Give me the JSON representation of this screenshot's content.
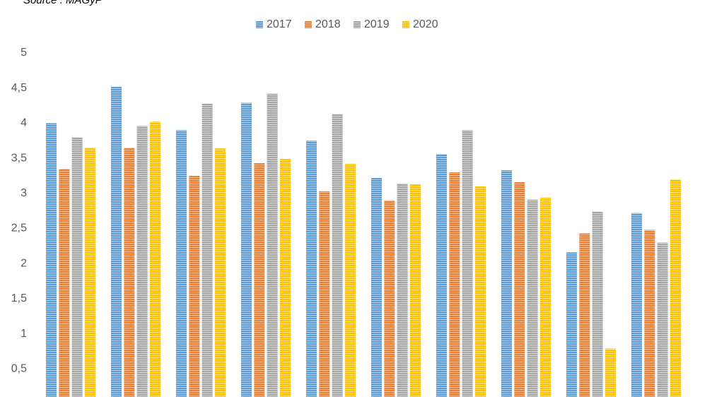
{
  "chart_data": {
    "type": "bar",
    "source": "Source : MAGyP",
    "categories": [
      null,
      null,
      null,
      null,
      null,
      null,
      null,
      null,
      null,
      null
    ],
    "series": [
      {
        "name": "2017",
        "color": "#5b9bd5",
        "values": [
          4.0,
          4.52,
          3.9,
          4.29,
          3.75,
          3.22,
          3.56,
          3.33,
          2.16,
          2.72
        ]
      },
      {
        "name": "2018",
        "color": "#ed7d31",
        "values": [
          3.35,
          3.65,
          3.25,
          3.43,
          3.03,
          2.9,
          3.3,
          3.16,
          2.43,
          2.48
        ]
      },
      {
        "name": "2019",
        "color": "#a5a5a5",
        "values": [
          3.8,
          3.96,
          4.28,
          4.42,
          4.13,
          3.14,
          3.9,
          2.91,
          2.74,
          2.3
        ]
      },
      {
        "name": "2020",
        "color": "#ffc000",
        "values": [
          3.65,
          4.02,
          3.64,
          3.49,
          3.42,
          3.13,
          3.1,
          2.94,
          0.79,
          3.2
        ]
      }
    ],
    "ylim": [
      0.1,
      5
    ],
    "yticks": [
      {
        "value": 0.5,
        "label": "0,5"
      },
      1,
      {
        "value": 1.5,
        "label": "1,5"
      },
      2,
      {
        "value": 2.5,
        "label": "2,5"
      },
      3,
      {
        "value": 3.5,
        "label": "3,5"
      },
      4,
      {
        "value": 4.5,
        "label": "4,5"
      },
      5
    ],
    "grid": false,
    "legend": "top"
  }
}
